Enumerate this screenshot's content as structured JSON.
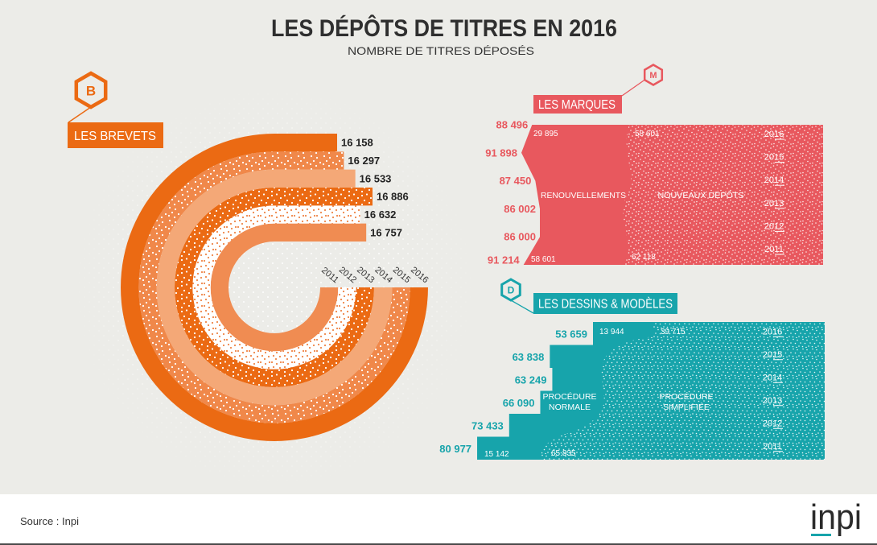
{
  "header": {
    "title": "LES DÉPÔTS DE TITRES EN 2016",
    "subtitle": "NOMBRE DE TITRES DÉPOSÉS"
  },
  "colors": {
    "brevets": "#eb6a13",
    "brevets_medium": "#f0884a",
    "brevets_light": "#f4a877",
    "brevets_inner": "#f08c52",
    "brevets_dots": "#ef8548",
    "marques": "#e8585e",
    "dessins": "#17a4ab",
    "text": "#2b2b2b",
    "white": "#ffffff"
  },
  "chart_data": [
    {
      "type": "bar",
      "style": "radial rings",
      "title": "LES BREVETS",
      "badge": "B",
      "categories": [
        "2011",
        "2012",
        "2013",
        "2014",
        "2015",
        "2016"
      ],
      "values": [
        16757,
        16632,
        16886,
        16533,
        16297,
        16158
      ],
      "value_labels": [
        "16 757",
        "16 632",
        "16 886",
        "16 533",
        "16 297",
        "16 158"
      ]
    },
    {
      "type": "area",
      "title": "LES MARQUES",
      "badge": "M",
      "categories": [
        "2016",
        "2015",
        "2014",
        "2013",
        "2012",
        "2011"
      ],
      "totals": [
        88496,
        91898,
        87450,
        86002,
        86000,
        91214
      ],
      "total_labels": [
        "88 496",
        "91 898",
        "87 450",
        "86 002",
        "86 000",
        "91 214"
      ],
      "series": [
        {
          "name": "RENOUVELLEMENTS",
          "label_2016": "29 895",
          "label_2011": "58 601"
        },
        {
          "name": "NOUVEAUX DÉPÔTS",
          "label_2016": "58 601",
          "label_2011": "62 118"
        }
      ]
    },
    {
      "type": "bar",
      "title": "LES DESSINS & MODÈLES",
      "badge": "D",
      "categories": [
        "2016",
        "2015",
        "2014",
        "2013",
        "2012",
        "2011"
      ],
      "totals": [
        53659,
        63838,
        63249,
        66090,
        73433,
        80977
      ],
      "total_labels": [
        "53 659",
        "63 838",
        "63 249",
        "66 090",
        "73 433",
        "80 977"
      ],
      "series": [
        {
          "name": [
            "PROCÉDURE",
            "NORMALE"
          ],
          "label_2016": "13 944",
          "label_2011": "15 142"
        },
        {
          "name": [
            "PROCÉDURE",
            "SIMPLIFIÉE"
          ],
          "label_2016": "39 715",
          "label_2011": "65 835"
        }
      ]
    }
  ],
  "footer": {
    "source": "Source : Inpi",
    "logo": "inpi"
  }
}
